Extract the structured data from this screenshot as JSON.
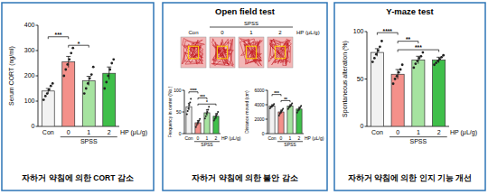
{
  "panels": [
    {
      "caption": "자하거 약침에 의한 CORT 감소"
    },
    {
      "title": "Open field test",
      "caption": "자하거 약침에 의한 불안 감소",
      "images": {
        "labels": [
          "Con",
          "0",
          "1",
          "2"
        ],
        "group": {
          "label": "SPSS",
          "members": [
            "0",
            "1",
            "2"
          ]
        },
        "x_label": "HP (μL/g)"
      }
    },
    {
      "title": "Y-maze test",
      "caption": "자하거 약침에 의한 인지 기능 개선"
    }
  ],
  "chart_data": [
    {
      "type": "bar",
      "y_label": "Serum CORT (ng/ml)",
      "categories": [
        "Con",
        "0",
        "1",
        "2"
      ],
      "x_label": "HP (μL/g)",
      "group": {
        "label": "SPSS",
        "members": [
          "0",
          "1",
          "2"
        ]
      },
      "values": [
        140,
        255,
        180,
        210
      ],
      "errors": [
        10,
        22,
        18,
        25
      ],
      "points": [
        [
          105,
          120,
          130,
          145,
          160,
          170
        ],
        [
          200,
          225,
          245,
          265,
          290,
          310
        ],
        [
          130,
          150,
          170,
          190,
          205,
          235
        ],
        [
          150,
          175,
          200,
          225,
          250,
          265
        ]
      ],
      "colors": [
        "#f2f2f2",
        "#f4908a",
        "#a6e3a0",
        "#3fbf4a"
      ],
      "ylim": [
        0,
        400
      ],
      "yticks": [
        0,
        100,
        200,
        300,
        400
      ],
      "significance": [
        {
          "between": [
            "Con",
            "0"
          ],
          "label": "***"
        },
        {
          "between": [
            "0",
            "1"
          ],
          "label": "*"
        }
      ]
    },
    {
      "type": "bar",
      "y_label": "Frequency in center (No.)",
      "categories": [
        "Con",
        "0",
        "1",
        "2"
      ],
      "x_label": "HP (μL/g)",
      "group": {
        "label": "SPSS",
        "members": [
          "0",
          "1",
          "2"
        ]
      },
      "values": [
        62,
        25,
        48,
        40
      ],
      "errors": [
        8,
        5,
        7,
        6
      ],
      "points": [
        [
          45,
          52,
          58,
          66,
          72,
          80
        ],
        [
          15,
          20,
          24,
          27,
          30,
          34
        ],
        [
          35,
          40,
          46,
          50,
          55,
          62
        ],
        [
          30,
          34,
          38,
          42,
          46,
          50
        ]
      ],
      "colors": [
        "#f2f2f2",
        "#f4908a",
        "#a6e3a0",
        "#3fbf4a"
      ],
      "ylim": [
        0,
        100
      ],
      "yticks": [
        0,
        50,
        100
      ],
      "significance": [
        {
          "between": [
            "Con",
            "0"
          ],
          "label": "****"
        },
        {
          "between": [
            "0",
            "1"
          ],
          "label": "***"
        },
        {
          "between": [
            "0",
            "2"
          ],
          "label": "*"
        }
      ]
    },
    {
      "type": "bar",
      "y_label": "Distance moved (cm)",
      "categories": [
        "Con",
        "0",
        "1",
        "2"
      ],
      "x_label": "HP (μL/g)",
      "group": {
        "label": "SPSS",
        "members": [
          "0",
          "1",
          "2"
        ]
      },
      "values": [
        3800,
        3000,
        3800,
        3400
      ],
      "errors": [
        200,
        250,
        200,
        250
      ],
      "points": [
        [
          3500,
          3650,
          3750,
          3850,
          3950,
          4100
        ],
        [
          2500,
          2750,
          2950,
          3100,
          3250,
          3450
        ],
        [
          3400,
          3600,
          3750,
          3850,
          4000,
          4200
        ],
        [
          2900,
          3150,
          3350,
          3500,
          3650,
          3850
        ]
      ],
      "colors": [
        "#f2f2f2",
        "#f4908a",
        "#a6e3a0",
        "#3fbf4a"
      ],
      "ylim": [
        0,
        6000
      ],
      "yticks": [
        0,
        2000,
        4000,
        6000
      ],
      "significance": [
        {
          "between": [
            "Con",
            "0"
          ],
          "label": "***"
        },
        {
          "between": [
            "0",
            "1"
          ],
          "label": "**"
        }
      ]
    },
    {
      "type": "bar",
      "y_label": "Spontaneous alteration (%)",
      "categories": [
        "Con",
        "0",
        "1",
        "2"
      ],
      "x_label": "HP (μL/g)",
      "group": {
        "label": "SPSS",
        "members": [
          "0",
          "1",
          "2"
        ]
      },
      "values": [
        78,
        55,
        70,
        70
      ],
      "errors": [
        4,
        5,
        4,
        3
      ],
      "points": [
        [
          68,
          72,
          76,
          80,
          84,
          90
        ],
        [
          45,
          50,
          53,
          57,
          60,
          65
        ],
        [
          62,
          66,
          69,
          72,
          74,
          78
        ],
        [
          65,
          67,
          69,
          71,
          73,
          75
        ]
      ],
      "colors": [
        "#f2f2f2",
        "#f4908a",
        "#a6e3a0",
        "#3fbf4a"
      ],
      "ylim": [
        0,
        100
      ],
      "yticks": [
        0,
        50,
        100
      ],
      "significance": [
        {
          "between": [
            "Con",
            "0"
          ],
          "label": "****"
        },
        {
          "between": [
            "0",
            "1"
          ],
          "label": "**"
        },
        {
          "between": [
            "0",
            "2"
          ],
          "label": "***"
        }
      ]
    }
  ]
}
